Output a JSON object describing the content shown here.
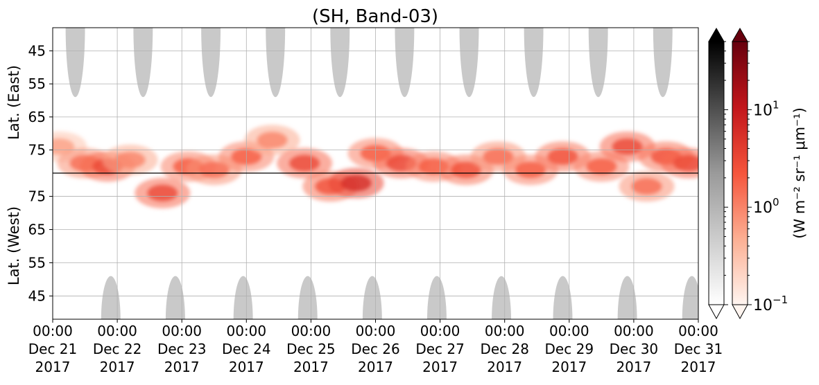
{
  "chart_data": {
    "type": "heatmap",
    "title": "(SH, Band-03)",
    "ylabel_top": "Lat. (East)",
    "ylabel_bottom": "Lat. (West)",
    "colorbar_label": "(W m⁻² sr⁻¹ μm⁻¹)",
    "colorbar_scale": "log",
    "colorbar_range": [
      0.1,
      50
    ],
    "colorbar_ticks": [
      {
        "value": 0.1,
        "base": "10",
        "exp": "−1"
      },
      {
        "value": 1,
        "base": "10",
        "exp": "0"
      },
      {
        "value": 10,
        "base": "10",
        "exp": "1"
      }
    ],
    "colormaps": [
      "Greys",
      "Reds"
    ],
    "x_range_days": [
      21,
      31
    ],
    "x_ticks": [
      {
        "day": 21,
        "time": "00:00",
        "date": "Dec 21",
        "year": "2017"
      },
      {
        "day": 22,
        "time": "00:00",
        "date": "Dec 22",
        "year": "2017"
      },
      {
        "day": 23,
        "time": "00:00",
        "date": "Dec 23",
        "year": "2017"
      },
      {
        "day": 24,
        "time": "00:00",
        "date": "Dec 24",
        "year": "2017"
      },
      {
        "day": 25,
        "time": "00:00",
        "date": "Dec 25",
        "year": "2017"
      },
      {
        "day": 26,
        "time": "00:00",
        "date": "Dec 26",
        "year": "2017"
      },
      {
        "day": 27,
        "time": "00:00",
        "date": "Dec 27",
        "year": "2017"
      },
      {
        "day": 28,
        "time": "00:00",
        "date": "Dec 28",
        "year": "2017"
      },
      {
        "day": 29,
        "time": "00:00",
        "date": "Dec 29",
        "year": "2017"
      },
      {
        "day": 30,
        "time": "00:00",
        "date": "Dec 30",
        "year": "2017"
      },
      {
        "day": 31,
        "time": "00:00",
        "date": "Dec 31",
        "year": "2017"
      }
    ],
    "y_ticks_top": [
      "45",
      "55",
      "65",
      "75"
    ],
    "y_ticks_bottom": [
      "75",
      "65",
      "55",
      "45"
    ],
    "y_tick_values_top": [
      45,
      55,
      65,
      75
    ],
    "y_tick_values_bottom": [
      75,
      65,
      55,
      45
    ],
    "y_center_latitude": 82,
    "y_limit_latitude": 38,
    "grid": true,
    "center_line": true,
    "grey_daylight_regions": {
      "east_peak_days": [
        21.35,
        22.4,
        23.45,
        24.45,
        25.45,
        26.45,
        27.45,
        28.45,
        29.45,
        30.45
      ],
      "west_peak_days": [
        21.9,
        22.9,
        23.95,
        24.95,
        25.95,
        26.95,
        27.95,
        28.9,
        29.9,
        30.9
      ],
      "east_max_latitude": 59,
      "west_max_latitude": 51,
      "half_width_days": 0.15
    },
    "red_intensity_band": {
      "description_points": [
        {
          "day": 21.1,
          "lat": 74,
          "hemisphere": "East",
          "value": 0.6
        },
        {
          "day": 21.5,
          "lat": 79,
          "hemisphere": "East",
          "value": 1.5
        },
        {
          "day": 21.85,
          "lat": 80,
          "hemisphere": "East",
          "value": 3
        },
        {
          "day": 22.2,
          "lat": 78,
          "hemisphere": "East",
          "value": 1
        },
        {
          "day": 22.7,
          "lat": 76,
          "hemisphere": "West",
          "value": 3
        },
        {
          "day": 23.1,
          "lat": 80,
          "hemisphere": "East",
          "value": 2
        },
        {
          "day": 23.5,
          "lat": 81,
          "hemisphere": "East",
          "value": 1.5
        },
        {
          "day": 24.0,
          "lat": 77,
          "hemisphere": "East",
          "value": 2
        },
        {
          "day": 24.4,
          "lat": 72,
          "hemisphere": "East",
          "value": 1
        },
        {
          "day": 24.9,
          "lat": 79,
          "hemisphere": "East",
          "value": 3
        },
        {
          "day": 25.3,
          "lat": 78,
          "hemisphere": "West",
          "value": 2.5
        },
        {
          "day": 25.7,
          "lat": 79,
          "hemisphere": "West",
          "value": 6
        },
        {
          "day": 26.0,
          "lat": 76,
          "hemisphere": "East",
          "value": 2
        },
        {
          "day": 26.4,
          "lat": 79,
          "hemisphere": "East",
          "value": 3
        },
        {
          "day": 26.9,
          "lat": 80,
          "hemisphere": "East",
          "value": 2
        },
        {
          "day": 27.4,
          "lat": 81,
          "hemisphere": "East",
          "value": 2.5
        },
        {
          "day": 27.9,
          "lat": 77,
          "hemisphere": "East",
          "value": 1.5
        },
        {
          "day": 28.4,
          "lat": 81,
          "hemisphere": "East",
          "value": 2
        },
        {
          "day": 28.9,
          "lat": 77,
          "hemisphere": "East",
          "value": 2.5
        },
        {
          "day": 29.5,
          "lat": 80,
          "hemisphere": "East",
          "value": 2
        },
        {
          "day": 29.9,
          "lat": 74,
          "hemisphere": "East",
          "value": 3
        },
        {
          "day": 30.2,
          "lat": 78,
          "hemisphere": "West",
          "value": 1.5
        },
        {
          "day": 30.5,
          "lat": 77,
          "hemisphere": "East",
          "value": 2.5
        },
        {
          "day": 30.85,
          "lat": 79,
          "hemisphere": "East",
          "value": 3
        }
      ]
    }
  }
}
